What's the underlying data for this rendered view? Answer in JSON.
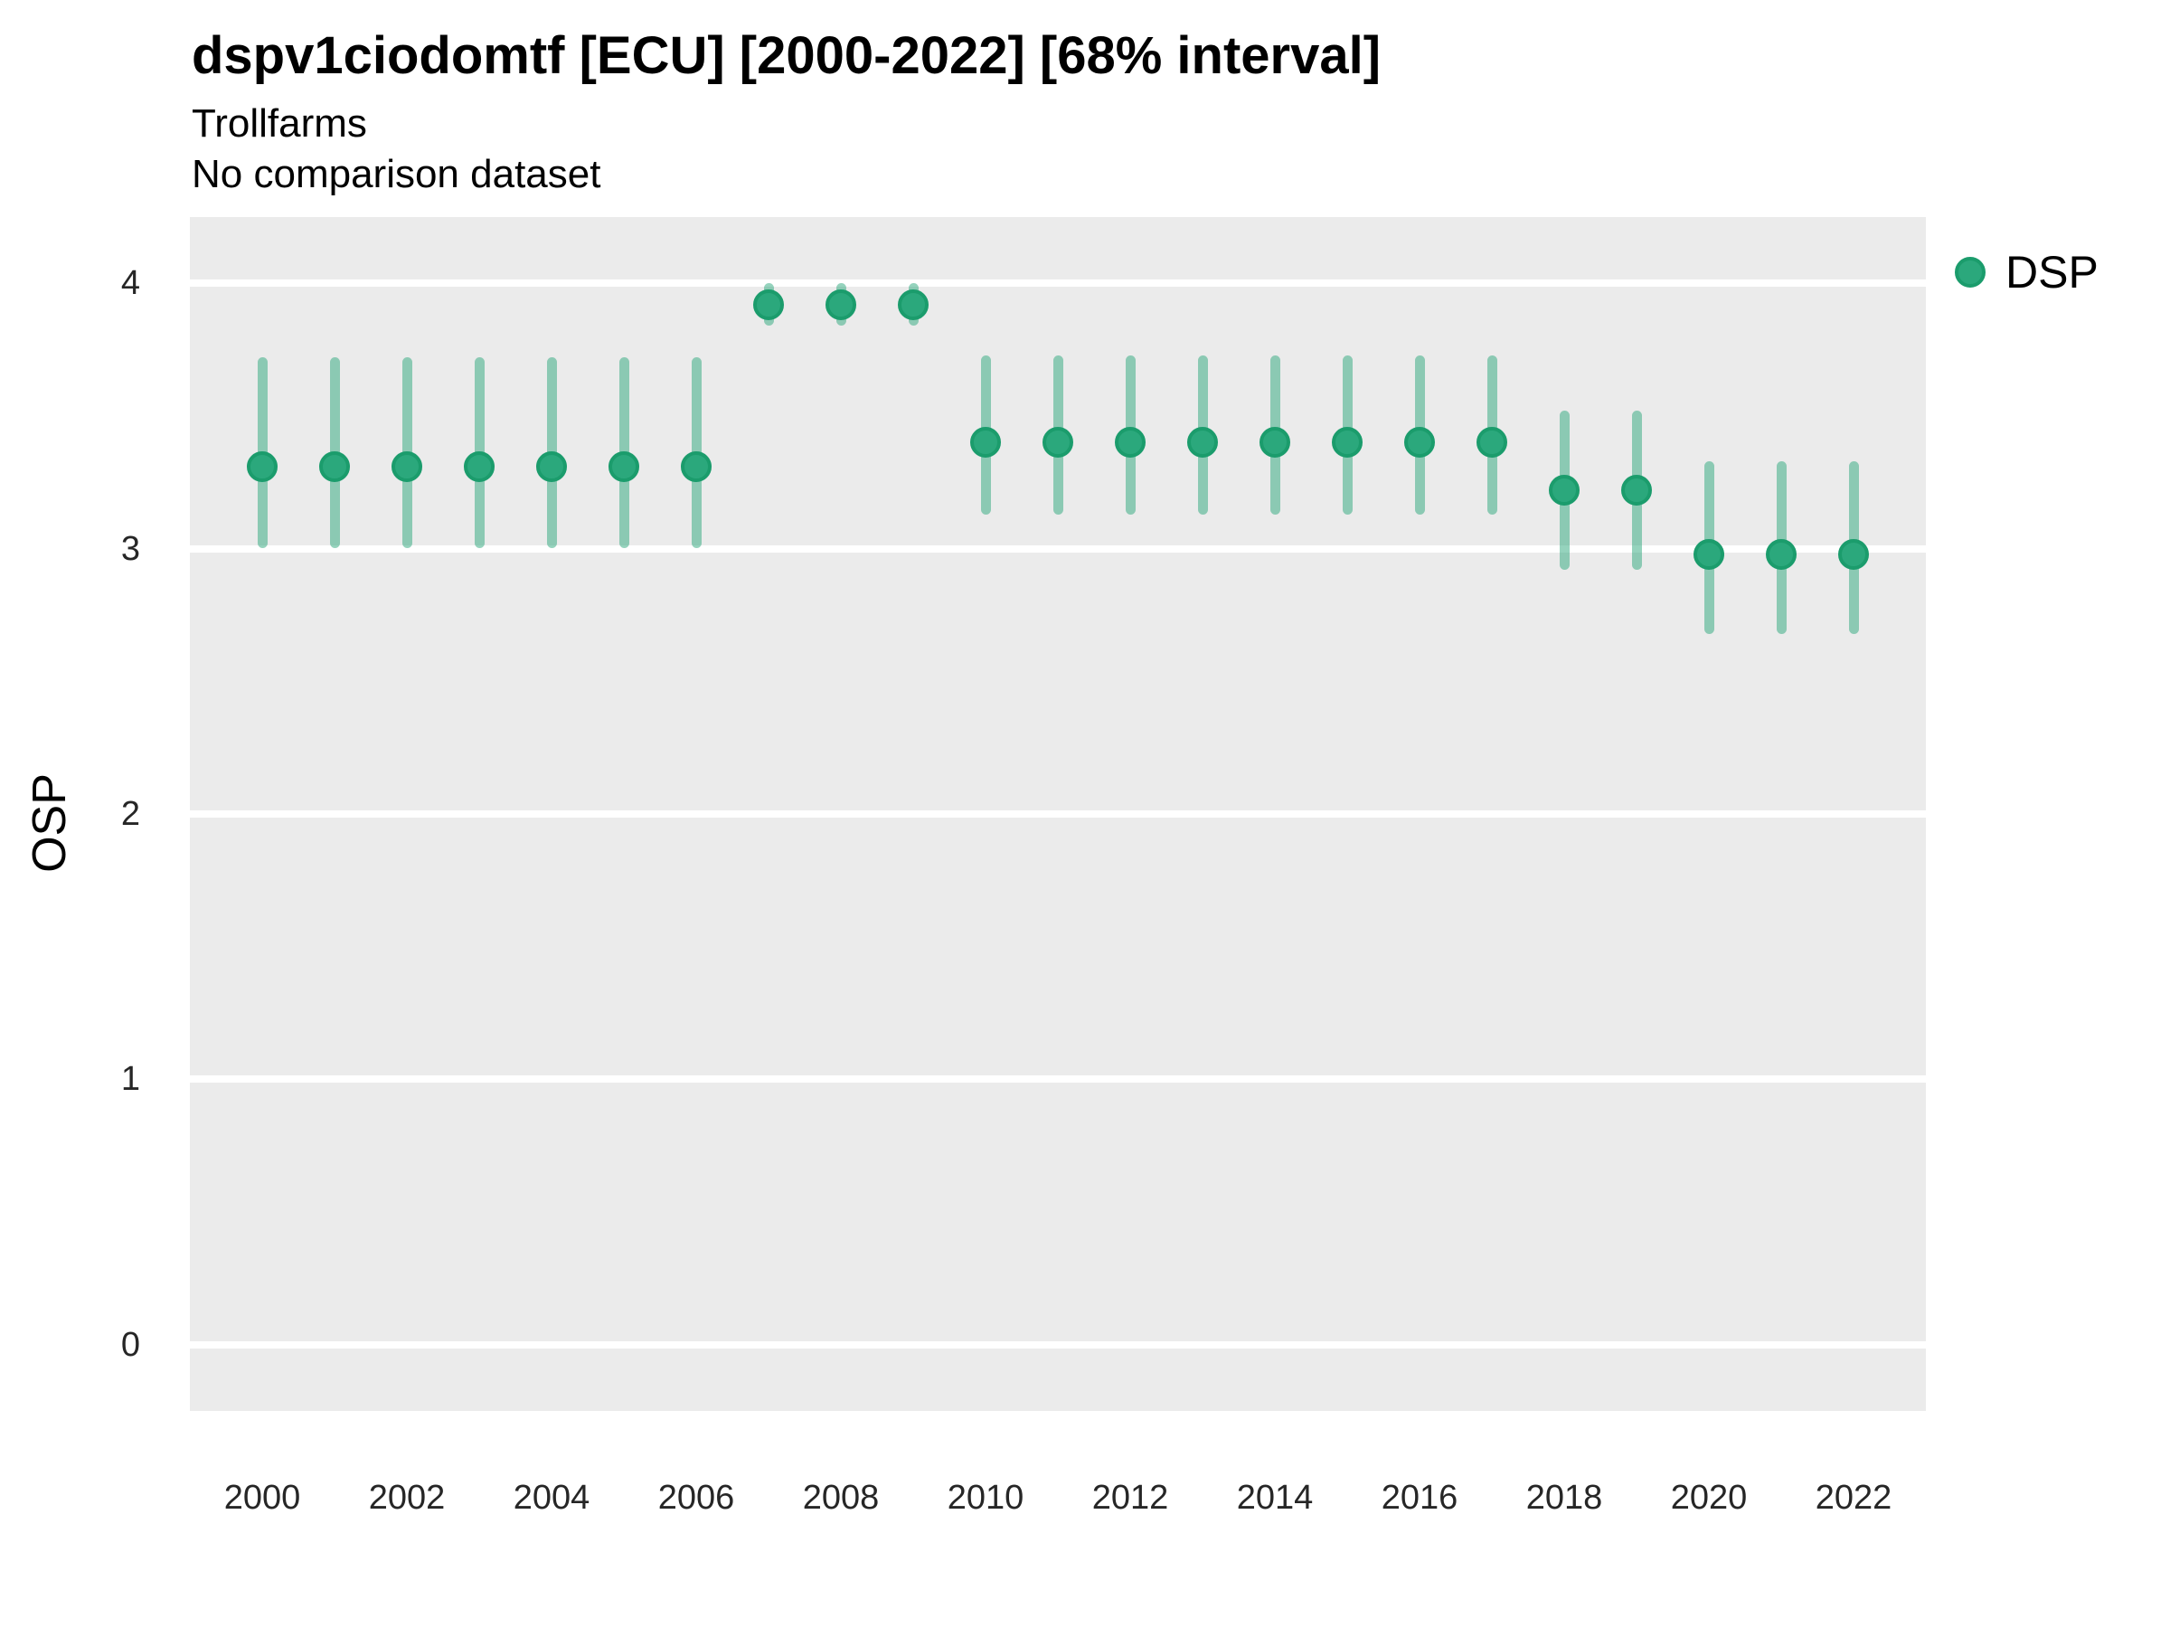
{
  "header": {
    "title": "dspv1ciodomtf [ECU] [2000-2022] [68% interval]",
    "subtitle": "Trollfarms",
    "comparison_note": "No comparison dataset"
  },
  "legend": {
    "label": "DSP"
  },
  "chart_data": {
    "type": "scatter",
    "subtype": "pointrange",
    "title": "dspv1ciodomtf [ECU] [2000-2022] [68% interval]",
    "subtitle": "Trollfarms",
    "note": "No comparison dataset",
    "interval_level": "68%",
    "xlabel": "",
    "ylabel": "OSP",
    "legend_entries": [
      "DSP"
    ],
    "legend_position": "right-top",
    "grid": "horizontal-major-only",
    "panel_background": "#EBEBEB",
    "gridline_color": "#FFFFFF",
    "xlim": [
      1999,
      2023
    ],
    "ylim": [
      -0.25,
      4.25
    ],
    "x_ticks": [
      2000,
      2002,
      2004,
      2006,
      2008,
      2010,
      2012,
      2014,
      2016,
      2018,
      2020,
      2022
    ],
    "y_ticks": [
      0,
      1,
      2,
      3,
      4
    ],
    "colors": {
      "point_fill": "#2BA87C",
      "point_stroke": "#1B9C6C",
      "interval": "rgba(43,168,124,0.5)"
    },
    "series": [
      {
        "name": "DSP",
        "points": [
          {
            "year": 2000,
            "value": 3.31,
            "low": 3.0,
            "high": 3.72
          },
          {
            "year": 2001,
            "value": 3.31,
            "low": 3.0,
            "high": 3.72
          },
          {
            "year": 2002,
            "value": 3.31,
            "low": 3.0,
            "high": 3.72
          },
          {
            "year": 2003,
            "value": 3.31,
            "low": 3.0,
            "high": 3.72
          },
          {
            "year": 2004,
            "value": 3.31,
            "low": 3.0,
            "high": 3.72
          },
          {
            "year": 2005,
            "value": 3.31,
            "low": 3.0,
            "high": 3.72
          },
          {
            "year": 2006,
            "value": 3.31,
            "low": 3.0,
            "high": 3.72
          },
          {
            "year": 2007,
            "value": 3.92,
            "low": 3.84,
            "high": 4.0
          },
          {
            "year": 2008,
            "value": 3.92,
            "low": 3.84,
            "high": 4.0
          },
          {
            "year": 2009,
            "value": 3.92,
            "low": 3.84,
            "high": 4.0
          },
          {
            "year": 2010,
            "value": 3.4,
            "low": 3.13,
            "high": 3.73
          },
          {
            "year": 2011,
            "value": 3.4,
            "low": 3.13,
            "high": 3.73
          },
          {
            "year": 2012,
            "value": 3.4,
            "low": 3.13,
            "high": 3.73
          },
          {
            "year": 2013,
            "value": 3.4,
            "low": 3.13,
            "high": 3.73
          },
          {
            "year": 2014,
            "value": 3.4,
            "low": 3.13,
            "high": 3.73
          },
          {
            "year": 2015,
            "value": 3.4,
            "low": 3.13,
            "high": 3.73
          },
          {
            "year": 2016,
            "value": 3.4,
            "low": 3.13,
            "high": 3.73
          },
          {
            "year": 2017,
            "value": 3.4,
            "low": 3.13,
            "high": 3.73
          },
          {
            "year": 2018,
            "value": 3.22,
            "low": 2.92,
            "high": 3.52
          },
          {
            "year": 2019,
            "value": 3.22,
            "low": 2.92,
            "high": 3.52
          },
          {
            "year": 2020,
            "value": 2.98,
            "low": 2.68,
            "high": 3.33
          },
          {
            "year": 2021,
            "value": 2.98,
            "low": 2.68,
            "high": 3.33
          },
          {
            "year": 2022,
            "value": 2.98,
            "low": 2.68,
            "high": 3.33
          }
        ]
      }
    ]
  }
}
